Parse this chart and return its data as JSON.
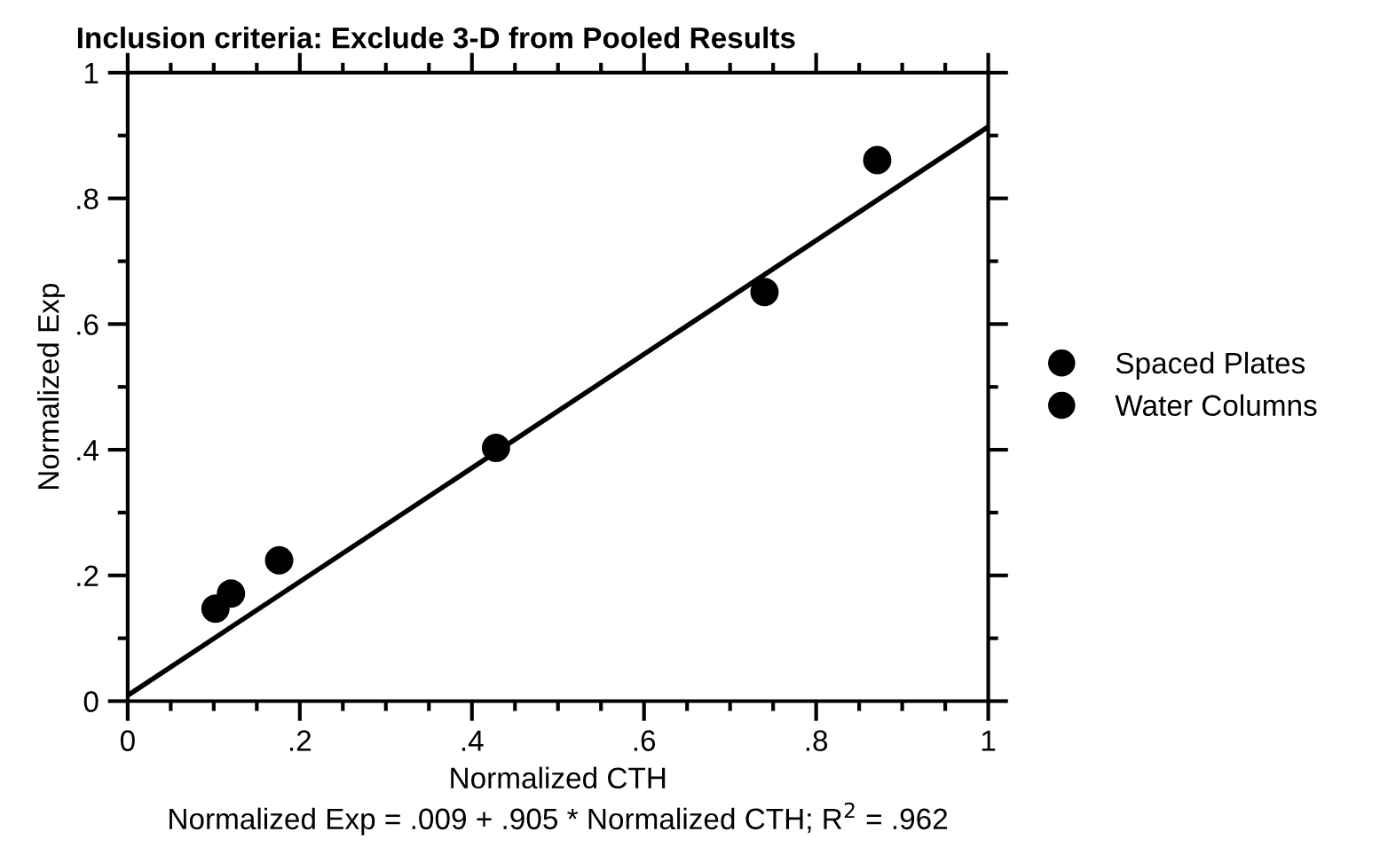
{
  "chart_data": {
    "type": "scatter",
    "title": "Inclusion criteria: Exclude 3-D from Pooled Results",
    "xlabel": "Normalized CTH",
    "ylabel": "Normalized Exp",
    "annotations": [
      "Normalized Exp = .009 + .905 * Normalized CTH; R$^{2}$ = .962"
    ],
    "series": [
      {
        "name": "Spaced Plates",
        "color": "#000000",
        "x": [
          0.102,
          0.12,
          0.176,
          0.428,
          0.871
        ],
        "values": [
          0.147,
          0.171,
          0.224,
          0.403,
          0.861
        ]
      },
      {
        "name": "Water Columns",
        "color": "#000000",
        "x": [
          0.74
        ],
        "values": [
          0.651
        ]
      },
      {
        "type": "line",
        "marker": "none",
        "color": "#000000",
        "x": [
          0,
          1
        ],
        "values": [
          0.009,
          0.914
        ]
      }
    ],
    "xlim": [
      0,
      1
    ],
    "ylim": [
      0,
      1
    ],
    "xticks": [
      0,
      {
        "value": 0.2,
        "label": ".2"
      },
      {
        "value": 0.4,
        "label": ".4"
      },
      {
        "value": 0.6,
        "label": ".6"
      },
      {
        "value": 0.8,
        "label": ".8"
      },
      1
    ],
    "yticks": [
      0,
      {
        "value": 0.2,
        "label": ".2"
      },
      {
        "value": 0.4,
        "label": ".4"
      },
      {
        "value": 0.6,
        "label": ".6"
      },
      {
        "value": 0.8,
        "label": ".8"
      },
      1
    ],
    "marker": "circle",
    "grid": false,
    "legend": "right"
  }
}
